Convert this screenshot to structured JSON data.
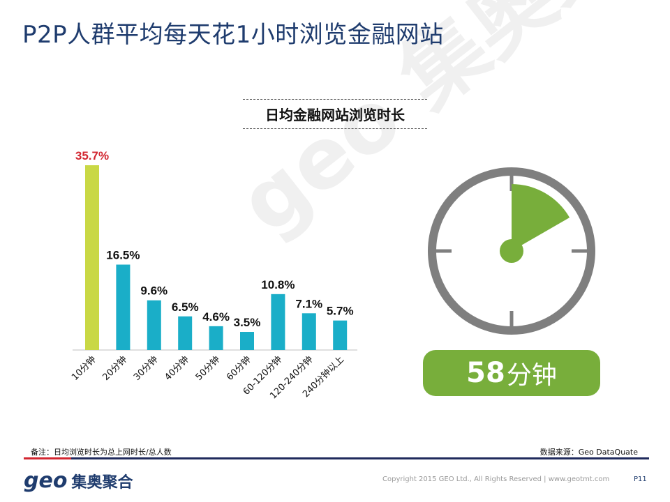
{
  "page": {
    "title": "P2P人群平均每天花1小时浏览金融网站",
    "watermark": "geo 集奥聚合",
    "footnote": "备注：日均浏览时长为总上网时长/总人数",
    "source": "数据来源：Geo DataQuate",
    "logo_geo": "geo",
    "logo_text": "集奥聚合",
    "copyright": "Copyright 2015 GEO Ltd., All Rights Reserved  |  www.geotmt.com",
    "page_number": "P11"
  },
  "clock": {
    "minutes_value": "58",
    "minutes_unit": "分钟",
    "minutes_shown": 58,
    "colors": {
      "face": "#7f7f7f",
      "wedge": "#78ae3b"
    }
  },
  "chart_data": {
    "type": "bar",
    "title": "日均金融网站浏览时长",
    "categories": [
      "10分钟",
      "20分钟",
      "30分钟",
      "40分钟",
      "50分钟",
      "60分钟",
      "60-120分钟",
      "120-240分钟",
      "240分钟以上"
    ],
    "values": [
      35.7,
      16.5,
      9.6,
      6.5,
      4.6,
      3.5,
      10.8,
      7.1,
      5.7
    ],
    "labels": [
      "35.7%",
      "16.5%",
      "9.6%",
      "6.5%",
      "4.6%",
      "3.5%",
      "10.8%",
      "7.1%",
      "5.7%"
    ],
    "ylim": [
      0,
      35.7
    ],
    "colors": [
      "#c9d845",
      "#1aaec8",
      "#1aaec8",
      "#1aaec8",
      "#1aaec8",
      "#1aaec8",
      "#1aaec8",
      "#1aaec8",
      "#1aaec8"
    ],
    "label_colors": [
      "#d22630",
      "#111111",
      "#111111",
      "#111111",
      "#111111",
      "#111111",
      "#111111",
      "#111111",
      "#111111"
    ],
    "grid": false,
    "legend": "none"
  }
}
